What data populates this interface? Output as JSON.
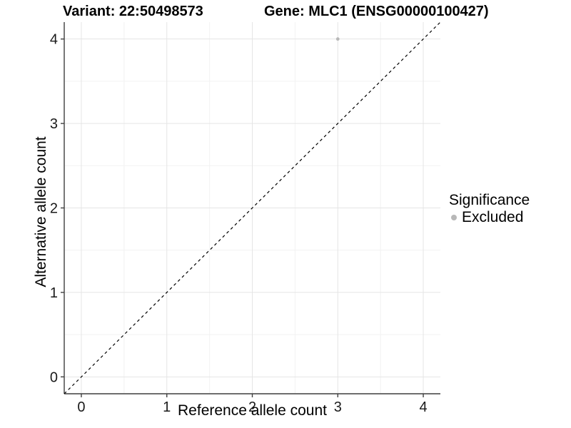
{
  "figure": {
    "title_variant": "Variant: 22:50498573",
    "title_gene": "Gene: MLC1 (ENSG00000100427)"
  },
  "chart_data": {
    "type": "scatter",
    "titles": [
      "Variant: 22:50498573",
      "Gene: MLC1 (ENSG00000100427)"
    ],
    "xlabel": "Reference allele count",
    "ylabel": "Alternative allele count",
    "xlim": [
      -0.2,
      4.2
    ],
    "ylim": [
      -0.2,
      4.2
    ],
    "x_ticks": [
      0,
      1,
      2,
      3,
      4
    ],
    "y_ticks": [
      0,
      1,
      2,
      3,
      4
    ],
    "minor_grid_step": 0.5,
    "grid": "major+minor",
    "series": [
      {
        "name": "Excluded",
        "color": "#b8b8b8",
        "points": [
          {
            "x": 3,
            "y": 4
          }
        ]
      }
    ],
    "reference_line": {
      "kind": "identity",
      "slope": 1,
      "intercept": 0,
      "linestyle": "dashed",
      "color": "#000000"
    },
    "legend": {
      "title": "Significance",
      "position": "right",
      "items": [
        {
          "label": "Excluded",
          "color": "#b8b8b8"
        }
      ]
    }
  },
  "style": {
    "background": "#ffffff",
    "grid_major": "#e5e5e5",
    "grid_minor": "#f2f2f2",
    "axis_line": "#3f3f3f",
    "tick_label_color": "#1a1a1a",
    "tick_font_size": 20,
    "point_radius": 2.4,
    "legend_dot_color": "#b8b8b8"
  }
}
